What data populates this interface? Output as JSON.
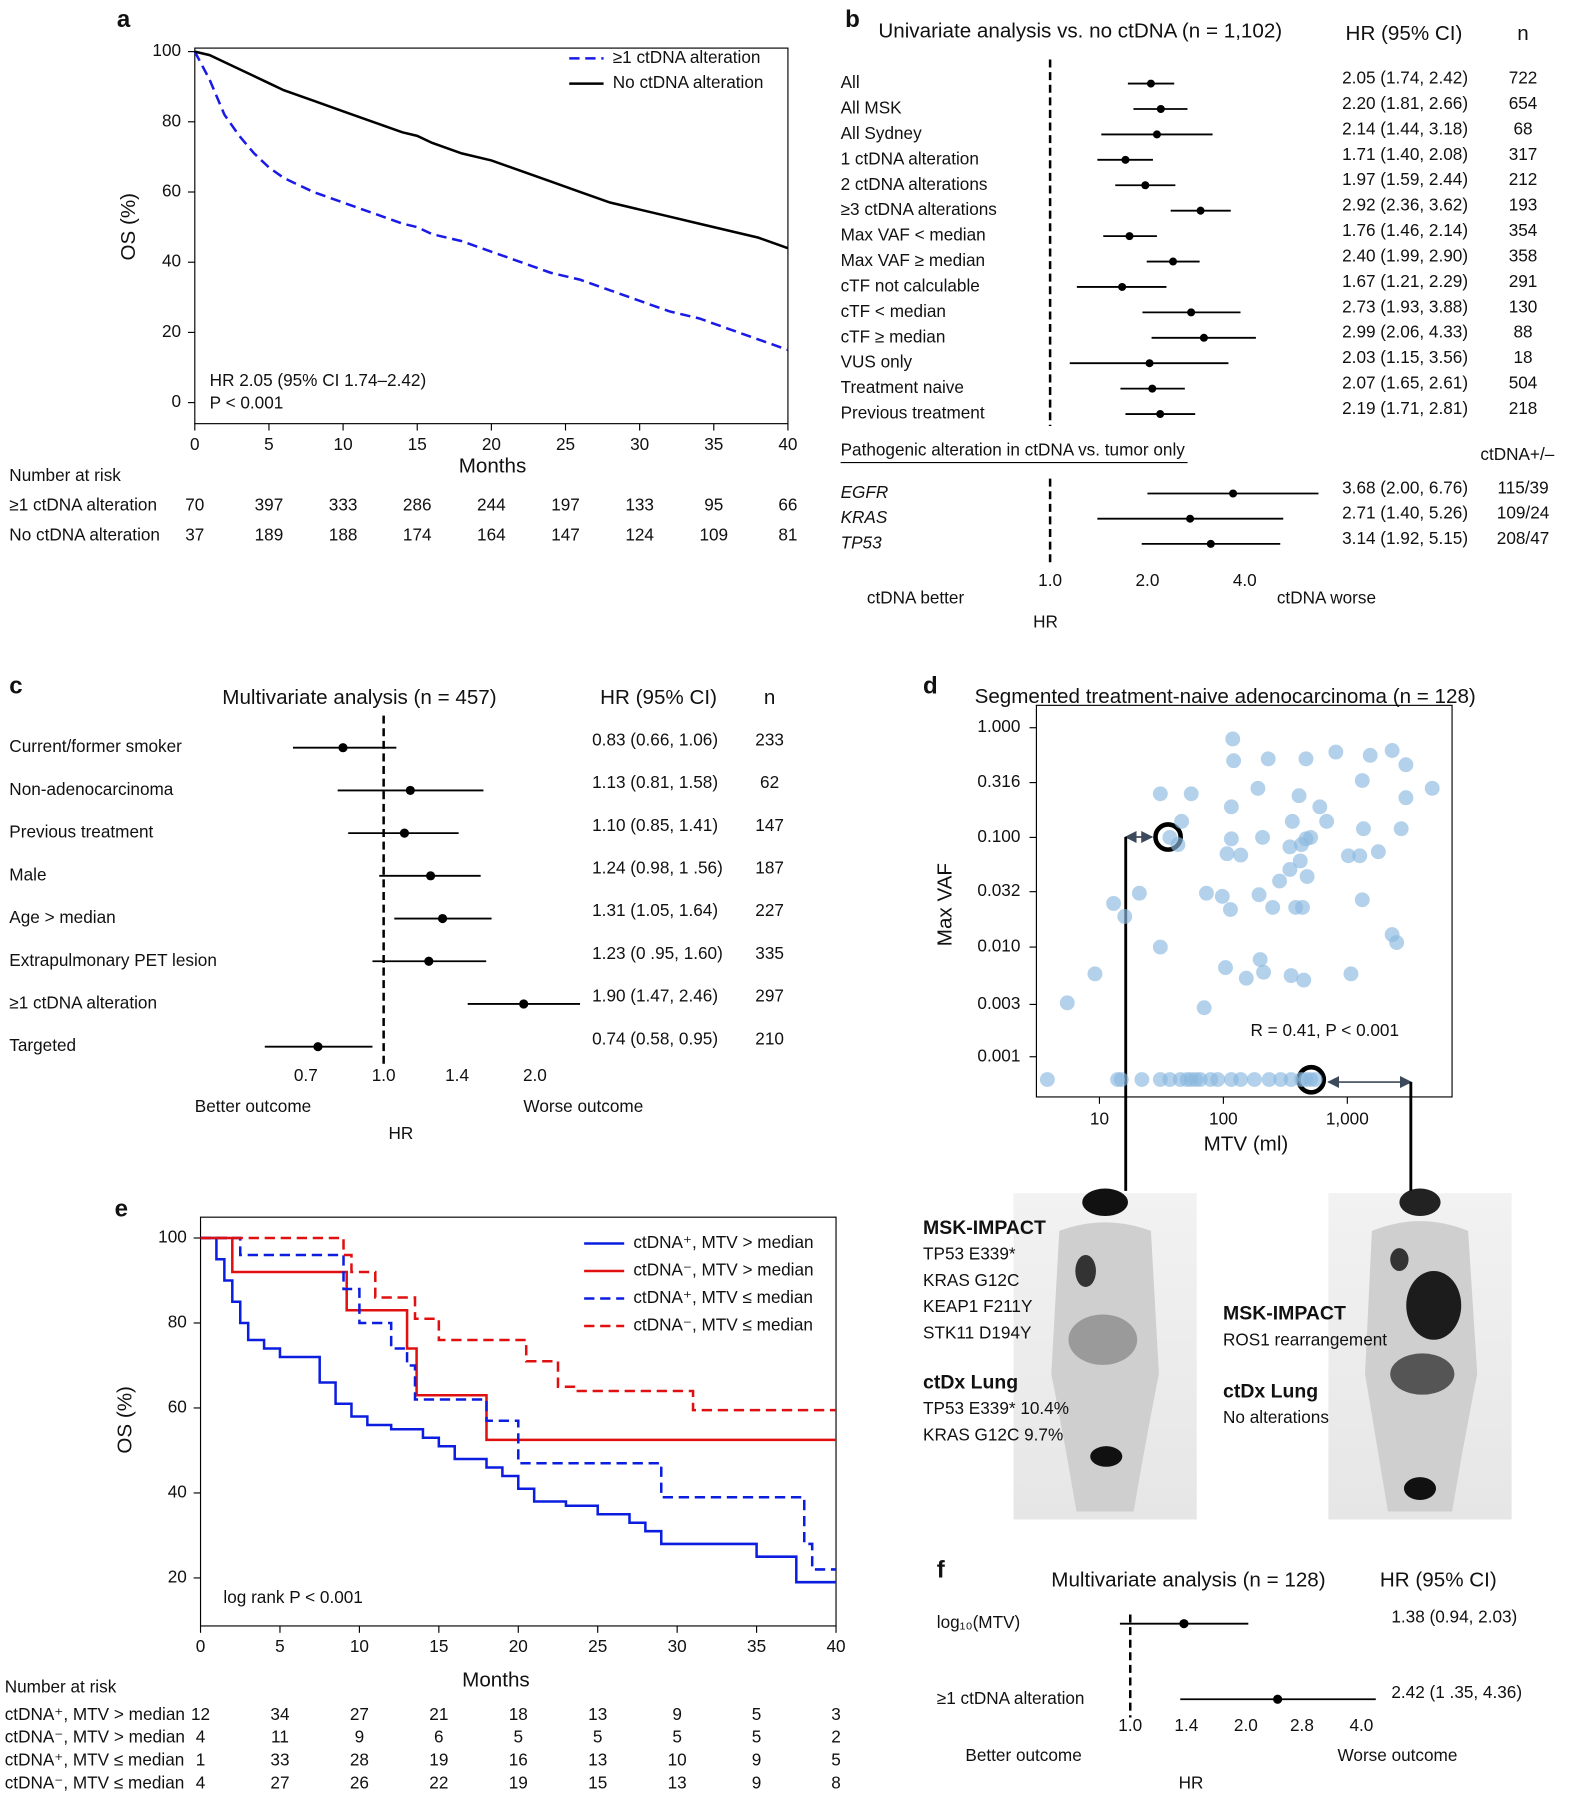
{
  "chart_data": [
    {
      "panel": "a",
      "type": "line",
      "xlabel": "Months",
      "ylabel": "OS (%)",
      "xlim": [
        0,
        40
      ],
      "ylim": [
        -6,
        101
      ],
      "xticks": [
        0,
        5,
        10,
        15,
        20,
        25,
        30,
        35,
        40
      ],
      "yticks": [
        0,
        20,
        40,
        60,
        80,
        100
      ],
      "legend": "upper right",
      "series": [
        {
          "name": "≥1 ctDNA alteration",
          "color": "#1a1ae6",
          "dash": true,
          "x": [
            0,
            1,
            2,
            3,
            4,
            5,
            6,
            8,
            10,
            12,
            14,
            15,
            16,
            18,
            20,
            22,
            24,
            26,
            28,
            30,
            32,
            34,
            36,
            38,
            40
          ],
          "values": [
            100,
            92,
            82,
            76,
            71,
            67,
            64,
            60,
            57,
            54,
            51,
            50,
            48,
            46,
            43,
            40,
            37,
            35,
            32,
            29,
            26,
            24,
            21,
            18,
            15
          ]
        },
        {
          "name": "No ctDNA alteration",
          "color": "#000000",
          "dash": false,
          "x": [
            0,
            1,
            2,
            3,
            4,
            5,
            6,
            8,
            10,
            12,
            14,
            15,
            16,
            18,
            20,
            22,
            24,
            26,
            28,
            30,
            32,
            34,
            36,
            38,
            40
          ],
          "values": [
            100,
            99,
            97,
            95,
            93,
            91,
            89,
            86,
            83,
            80,
            77,
            76,
            74,
            71,
            69,
            66,
            63,
            60,
            57,
            55,
            53,
            51,
            49,
            47,
            44
          ]
        }
      ],
      "annotations": [
        "HR 2.05 (95% CI 1.74–2.42)",
        "P < 0.001"
      ],
      "risk_title": "Number at risk",
      "risk_table": [
        {
          "label": "≥1 ctDNA alteration",
          "counts": [
            70,
            397,
            333,
            286,
            244,
            197,
            133,
            95,
            66
          ]
        },
        {
          "label": "No ctDNA alteration",
          "counts": [
            37,
            189,
            188,
            174,
            164,
            147,
            124,
            109,
            81
          ]
        }
      ]
    },
    {
      "panel": "b",
      "type": "forest",
      "title": "Univariate analysis vs. no ctDNA (n = 1,102)",
      "ci_header": "HR (95% CI)",
      "xscale": "log",
      "xlim": [
        0.8,
        7
      ],
      "reference_line": 1,
      "xticks": [
        {
          "value": 1,
          "label": "1.0"
        },
        {
          "value": 2,
          "label": "2.0"
        },
        {
          "value": 4,
          "label": "4.0"
        }
      ],
      "xlabel": "HR",
      "better": "ctDNA better",
      "worse": "ctDNA worse",
      "groups": [
        {
          "n_header": "n",
          "labels": [
            "All",
            "All MSK",
            "All Sydney",
            "1 ctDNA alteration",
            "2 ctDNA alterations",
            "≥3 ctDNA alterations",
            "Max VAF < median",
            "Max VAF ≥ median",
            "cTF not calculable",
            "cTF < median",
            "cTF ≥ median",
            "VUS only",
            "Treatment naive",
            "Previous treatment"
          ],
          "values": [
            2.05,
            2.2,
            2.14,
            1.71,
            1.97,
            2.92,
            1.76,
            2.4,
            1.67,
            2.73,
            2.99,
            2.03,
            2.07,
            2.19
          ],
          "lower": [
            1.74,
            1.81,
            1.44,
            1.4,
            1.59,
            2.36,
            1.46,
            1.99,
            1.21,
            1.93,
            2.06,
            1.15,
            1.65,
            1.71
          ],
          "upper": [
            2.42,
            2.66,
            3.18,
            2.08,
            2.44,
            3.62,
            2.14,
            2.9,
            2.29,
            3.88,
            4.33,
            3.56,
            2.61,
            2.81
          ],
          "value_labels": [
            "2.05 (1.74, 2.42)",
            "2.20 (1.81, 2.66)",
            "2.14 (1.44, 3.18)",
            "1.71 (1.40, 2.08)",
            "1.97 (1.59, 2.44)",
            "2.92 (2.36, 3.62)",
            "1.76 (1.46, 2.14)",
            "2.40 (1.99, 2.90)",
            "1.67 (1.21, 2.29)",
            "2.73 (1.93, 3.88)",
            "2.99 (2.06, 4.33)",
            "2.03 (1.15, 3.56)",
            "2.07 (1.65, 2.61)",
            "2.19 (1.71, 2.81)"
          ],
          "n": [
            722,
            654,
            68,
            317,
            212,
            193,
            354,
            358,
            291,
            130,
            88,
            18,
            504,
            218
          ]
        },
        {
          "title": "Pathogenic alteration in ctDNA vs. tumor only",
          "n_header": "ctDNA+/–",
          "labels": [
            "EGFR",
            "KRAS",
            "TP53"
          ],
          "values": [
            3.68,
            2.71,
            3.14
          ],
          "lower": [
            2.0,
            1.4,
            1.92
          ],
          "upper": [
            6.76,
            5.26,
            5.15
          ],
          "value_labels": [
            "3.68 (2.00, 6.76)",
            "2.71 (1.40, 5.26)",
            "3.14 (1.92, 5.15)"
          ],
          "n": [
            "115/39",
            "109/24",
            "208/47"
          ]
        }
      ]
    },
    {
      "panel": "c",
      "type": "forest",
      "title": "Multivariate analysis (n = 457)",
      "ci_header": "HR (95% CI)",
      "xscale": "log",
      "xlim": [
        0.55,
        2.6
      ],
      "reference_line": 1,
      "xticks": [
        0.7,
        {
          "value": 1,
          "label": "1.0"
        },
        1.4,
        {
          "value": 2,
          "label": "2.0"
        }
      ],
      "xlabel": "HR",
      "better": "Better outcome",
      "worse": "Worse outcome",
      "groups": [
        {
          "n_header": "n",
          "labels": [
            "Current/former smoker",
            "Non-adenocarcinoma",
            "Previous treatment",
            "Male",
            "Age > median",
            "Extrapulmonary PET lesion",
            "≥1 ctDNA alteration",
            "Targeted"
          ],
          "values": [
            0.83,
            1.13,
            1.1,
            1.24,
            1.31,
            1.23,
            1.9,
            0.74
          ],
          "lower": [
            0.66,
            0.81,
            0.85,
            0.98,
            1.05,
            0.95,
            1.47,
            0.58
          ],
          "upper": [
            1.06,
            1.58,
            1.41,
            1.56,
            1.64,
            1.6,
            2.46,
            0.95
          ],
          "value_labels": [
            "0.83 (0.66, 1.06)",
            "1.13 (0.81, 1.58)",
            "1.10 (0.85, 1.41)",
            "1.24 (0.98, 1 .56)",
            "1.31 (1.05, 1.64)",
            "1.23 (0 .95, 1.60)",
            "1.90 (1.47, 2.46)",
            "0.74 (0.58, 0.95)"
          ],
          "n": [
            233,
            62,
            147,
            187,
            227,
            335,
            297,
            210
          ]
        }
      ]
    },
    {
      "panel": "d",
      "type": "scatter",
      "title": "Segmented treatment-naive adenocarcinoma (n = 128)",
      "xlabel": "MTV (ml)",
      "ylabel": "Max VAF",
      "xscale": "log",
      "yscale": "log",
      "xlim": [
        3.1,
        7000
      ],
      "ylim": [
        0.00043,
        1.6
      ],
      "xticks": [
        10,
        100,
        {
          "value": 1000,
          "label": "1,000"
        }
      ],
      "yticks": [
        0.001,
        0.003,
        {
          "value": 0.01,
          "label": "0.010"
        },
        0.032,
        {
          "value": 0.1,
          "label": "0.100"
        },
        0.316,
        {
          "value": 1,
          "label": "1.000"
        }
      ],
      "color": "#8ab8df",
      "annotation": "R = 0.41, P < 0.001",
      "x": [
        119,
        121,
        808,
        1530,
        2300,
        230,
        464,
        31,
        55,
        190,
        408,
        1320,
        2970,
        4840,
        2970,
        360,
        600,
        681,
        1350,
        2720,
        116,
        46,
        37,
        43,
        116,
        107,
        138,
        207,
        344,
        426,
        464,
        506,
        1020,
        1780,
        1260,
        417,
        344,
        474,
        73,
        284,
        21,
        13,
        16,
        98,
        114,
        194,
        250,
        383,
        435,
        1320,
        2300,
        2500,
        31,
        198,
        211,
        352,
        445,
        104,
        1070,
        153,
        9.2,
        70,
        5.5,
        3.8,
        14,
        15,
        22,
        31,
        37,
        45,
        51,
        55,
        60,
        65,
        79,
        90,
        116,
        138,
        178,
        234,
        290,
        352,
        426,
        464,
        506,
        551
      ],
      "values": [
        0.79,
        0.5,
        0.6,
        0.56,
        0.62,
        0.52,
        0.52,
        0.25,
        0.25,
        0.28,
        0.24,
        0.33,
        0.46,
        0.28,
        0.23,
        0.14,
        0.19,
        0.14,
        0.12,
        0.12,
        0.19,
        0.14,
        0.1,
        0.086,
        0.097,
        0.071,
        0.069,
        0.1,
        0.082,
        0.086,
        0.097,
        0.1,
        0.068,
        0.074,
        0.068,
        0.061,
        0.051,
        0.044,
        0.031,
        0.04,
        0.031,
        0.025,
        0.019,
        0.029,
        0.022,
        0.03,
        0.023,
        0.023,
        0.023,
        0.027,
        0.013,
        0.011,
        0.01,
        0.0077,
        0.0059,
        0.0055,
        0.005,
        0.0065,
        0.0057,
        0.0052,
        0.0057,
        0.0028,
        0.0031,
        0.00062,
        0.00062,
        0.00062,
        0.00062,
        0.00062,
        0.00062,
        0.00062,
        0.00062,
        0.00062,
        0.00062,
        0.00062,
        0.00062,
        0.00062,
        0.00062,
        0.00062,
        0.00062,
        0.00062,
        0.00062,
        0.00062,
        0.00062,
        0.00062,
        0.00062,
        0.00062
      ],
      "callouts": [
        {
          "heading": "MSK-IMPACT",
          "lines": [
            "TP53 E339*",
            "KRAS G12C",
            "KEAP1 F211Y",
            "STK11 D194Y"
          ]
        },
        {
          "heading": "ctDx Lung",
          "lines": [
            "TP53 E339* 10.4%",
            "KRAS G12C 9.7%"
          ]
        },
        {
          "heading": "MSK-IMPACT",
          "lines": [
            "ROS1 rearrangement"
          ]
        },
        {
          "heading": "ctDx Lung",
          "lines": [
            "No alterations"
          ]
        }
      ]
    },
    {
      "panel": "e",
      "type": "line",
      "step": true,
      "xlabel": "Months",
      "ylabel": "OS (%)",
      "xlim": [
        0,
        40
      ],
      "ylim": [
        8.7,
        104.9
      ],
      "xticks": [
        0,
        5,
        10,
        15,
        20,
        25,
        30,
        35,
        40
      ],
      "yticks": [
        20,
        40,
        60,
        80,
        100
      ],
      "legend": "upper right",
      "series": [
        {
          "name": "ctDNA⁺, MTV > median",
          "color": "#0b1ee0",
          "dash": false,
          "x": [
            0,
            1,
            1.5,
            2,
            2.5,
            3,
            4,
            5,
            7,
            7.5,
            8.5,
            9.5,
            10.5,
            12,
            14,
            15,
            16,
            18,
            19,
            20,
            21,
            23,
            25,
            27,
            28,
            29,
            34,
            35,
            37.5,
            40
          ],
          "values": [
            100,
            95,
            90,
            85,
            80,
            76,
            74,
            72,
            72,
            66,
            61,
            58,
            56,
            55,
            53,
            51,
            48,
            46,
            44,
            41,
            38,
            37,
            35,
            33,
            31,
            28,
            28,
            25,
            19,
            19
          ]
        },
        {
          "name": "ctDNA⁻, MTV > median",
          "color": "#e01010",
          "dash": false,
          "x": [
            0,
            2,
            9.2,
            13,
            13.6,
            18,
            40
          ],
          "values": [
            100,
            92,
            83,
            74,
            63,
            52.5,
            52.5
          ]
        },
        {
          "name": "ctDNA⁺, MTV ≤ median",
          "color": "#0b1ee0",
          "dash": true,
          "x": [
            0,
            2.5,
            9,
            10,
            12,
            13,
            13.5,
            18,
            20,
            29,
            38,
            38.5,
            40
          ],
          "values": [
            100,
            96,
            88,
            80,
            74,
            70,
            62,
            57,
            47,
            39,
            28,
            22,
            22
          ]
        },
        {
          "name": "ctDNA⁻, MTV ≤ median",
          "color": "#e01010",
          "dash": true,
          "x": [
            0,
            9,
            9.5,
            11,
            13.5,
            15,
            20.5,
            22.5,
            23.5,
            31,
            40
          ],
          "values": [
            100,
            96,
            92,
            86,
            81,
            76,
            71,
            65,
            64,
            59.5,
            59.5
          ]
        }
      ],
      "annotations": [
        "log rank P < 0.001"
      ],
      "risk_title": "Number at risk",
      "risk_table": [
        {
          "label": "ctDNA⁺, MTV > median",
          "counts": [
            12,
            34,
            27,
            21,
            18,
            13,
            9,
            5,
            3
          ]
        },
        {
          "label": "ctDNA⁻, MTV > median",
          "counts": [
            4,
            11,
            9,
            6,
            5,
            5,
            5,
            5,
            2
          ]
        },
        {
          "label": "ctDNA⁺, MTV ≤ median",
          "counts": [
            1,
            33,
            28,
            19,
            16,
            13,
            10,
            9,
            5
          ]
        },
        {
          "label": "ctDNA⁻, MTV ≤ median",
          "counts": [
            4,
            27,
            26,
            22,
            19,
            15,
            13,
            9,
            8
          ]
        }
      ]
    },
    {
      "panel": "f",
      "type": "forest",
      "title": "Multivariate analysis (n = 128)",
      "ci_header": "HR (95% CI)",
      "xscale": "log",
      "xlim": [
        0.9,
        4.5
      ],
      "reference_line": 1,
      "xticks": [
        {
          "value": 1,
          "label": "1.0"
        },
        1.4,
        {
          "value": 2,
          "label": "2.0"
        },
        2.8,
        {
          "value": 4,
          "label": "4.0"
        }
      ],
      "xlabel": "HR",
      "better": "Better outcome",
      "worse": "Worse outcome",
      "groups": [
        {
          "labels": [
            "log₁₀(MTV)",
            "≥1 ctDNA alteration"
          ],
          "values": [
            1.38,
            2.42
          ],
          "lower": [
            0.94,
            1.35
          ],
          "upper": [
            2.03,
            4.36
          ],
          "value_labels": [
            "1.38 (0.94, 2.03)",
            "2.42 (1 .35, 4.36)"
          ]
        }
      ]
    }
  ]
}
